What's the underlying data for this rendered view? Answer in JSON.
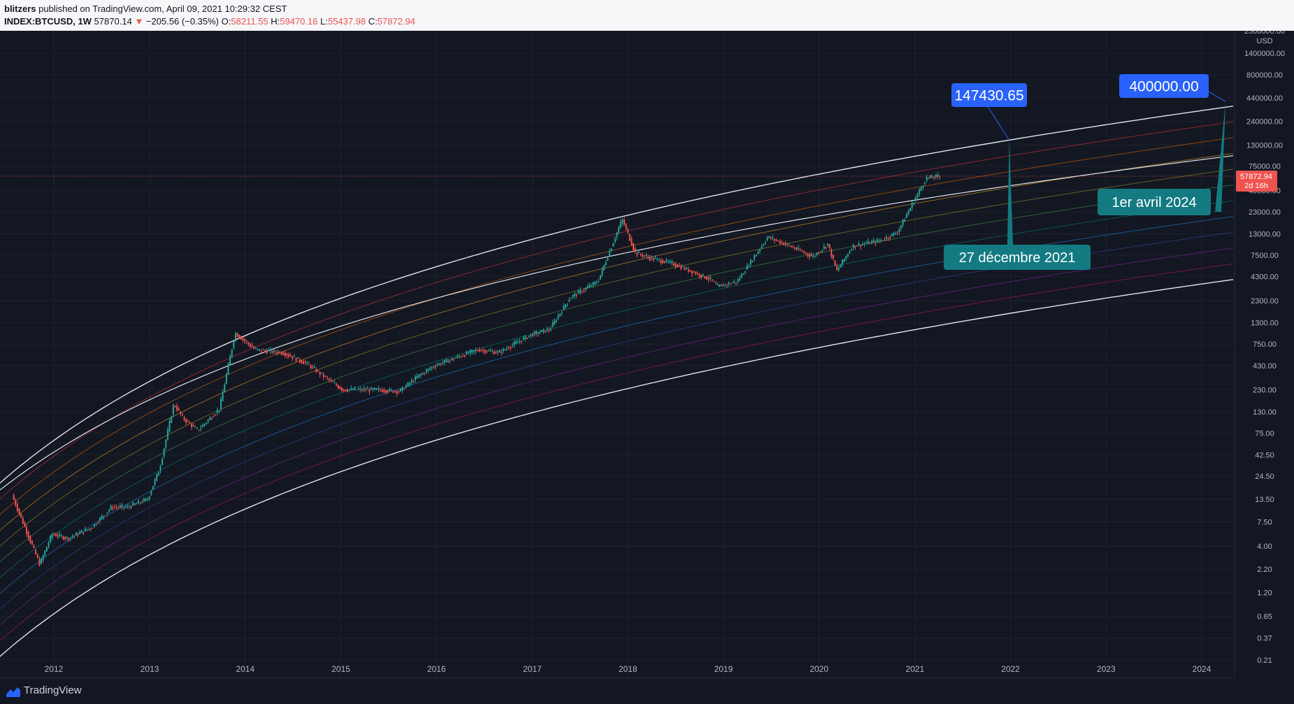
{
  "header": {
    "author": "blitzers",
    "published_text": "published on TradingView.com, April 09, 2021 10:29:32 CEST",
    "symbol": "INDEX:BTCUSD, 1W",
    "last": "57870.14",
    "arrow": "▼",
    "change": "−205.56 (−0.35%)",
    "o_label": "O:",
    "o": "58211.55",
    "h_label": "H:",
    "h": "59470.16",
    "l_label": "L:",
    "l": "55437.98",
    "c_label": "C:",
    "c": "57872.94"
  },
  "footer": {
    "brand": "TradingView"
  },
  "colors": {
    "background": "#131722",
    "up": "#26a69a",
    "down": "#ef5350",
    "callout": "#2962ff",
    "callout2": "#137a82"
  },
  "chart_data": {
    "type": "candlestick",
    "y_scale": "log",
    "currency": "USD",
    "x_ticks": [
      "2012",
      "2013",
      "2014",
      "2015",
      "2016",
      "2017",
      "2018",
      "2019",
      "2020",
      "2021",
      "2022",
      "2023",
      "2024"
    ],
    "y_ticks": [
      "2500000.00",
      "1400000.00",
      "800000.00",
      "440000.00",
      "240000.00",
      "130000.00",
      "75000.00",
      "40000.00",
      "23000.00",
      "13000.00",
      "7500.00",
      "4300.00",
      "2300.00",
      "1300.00",
      "750.00",
      "430.00",
      "230.00",
      "130.00",
      "75.00",
      "42.50",
      "24.50",
      "13.50",
      "7.50",
      "4.00",
      "2.20",
      "1.20",
      "0.65",
      "0.37",
      "0.21"
    ],
    "y_unit_label": "USD",
    "price_label": {
      "value": "57872.94",
      "countdown": "2d 16h"
    },
    "price_path": [
      [
        "2011-08-01",
        15
      ],
      [
        "2011-11-15",
        2.5
      ],
      [
        "2012-01-01",
        5.5
      ],
      [
        "2012-03-01",
        4.9
      ],
      [
        "2012-06-01",
        6.5
      ],
      [
        "2012-08-15",
        11
      ],
      [
        "2012-10-15",
        11
      ],
      [
        "2012-12-31",
        13.5
      ],
      [
        "2013-02-15",
        30
      ],
      [
        "2013-04-10",
        160
      ],
      [
        "2013-05-15",
        110
      ],
      [
        "2013-07-10",
        80
      ],
      [
        "2013-10-01",
        140
      ],
      [
        "2013-11-30",
        1000
      ],
      [
        "2014-02-15",
        650
      ],
      [
        "2014-06-01",
        600
      ],
      [
        "2014-09-01",
        450
      ],
      [
        "2014-11-01",
        330
      ],
      [
        "2015-01-15",
        230
      ],
      [
        "2015-06-01",
        230
      ],
      [
        "2015-08-20",
        220
      ],
      [
        "2015-11-01",
        330
      ],
      [
        "2016-01-01",
        430
      ],
      [
        "2016-06-15",
        650
      ],
      [
        "2016-09-01",
        600
      ],
      [
        "2017-01-01",
        950
      ],
      [
        "2017-03-15",
        1100
      ],
      [
        "2017-06-01",
        2500
      ],
      [
        "2017-09-15",
        3800
      ],
      [
        "2017-12-17",
        19000
      ],
      [
        "2018-02-05",
        8000
      ],
      [
        "2018-04-01",
        7000
      ],
      [
        "2018-06-30",
        6000
      ],
      [
        "2018-11-20",
        4000
      ],
      [
        "2018-12-15",
        3300
      ],
      [
        "2019-03-01",
        3800
      ],
      [
        "2019-06-26",
        12000
      ],
      [
        "2019-09-01",
        10000
      ],
      [
        "2019-12-15",
        7200
      ],
      [
        "2020-02-10",
        10000
      ],
      [
        "2020-03-15",
        5000
      ],
      [
        "2020-05-15",
        9500
      ],
      [
        "2020-09-01",
        11000
      ],
      [
        "2020-11-01",
        13500
      ],
      [
        "2020-12-31",
        29000
      ],
      [
        "2021-02-20",
        55000
      ],
      [
        "2021-04-09",
        57872
      ]
    ],
    "annotations": [
      {
        "label": "147430.65",
        "anchor_date": "2021-12-27",
        "anchor_value": 147430.65,
        "date_label": "27 décembre 2021"
      },
      {
        "label": "400000.00",
        "anchor_date": "2024-04-01",
        "anchor_value": 400000,
        "date_label": "1er avril 2024"
      }
    ],
    "current_price": 57872.94
  }
}
